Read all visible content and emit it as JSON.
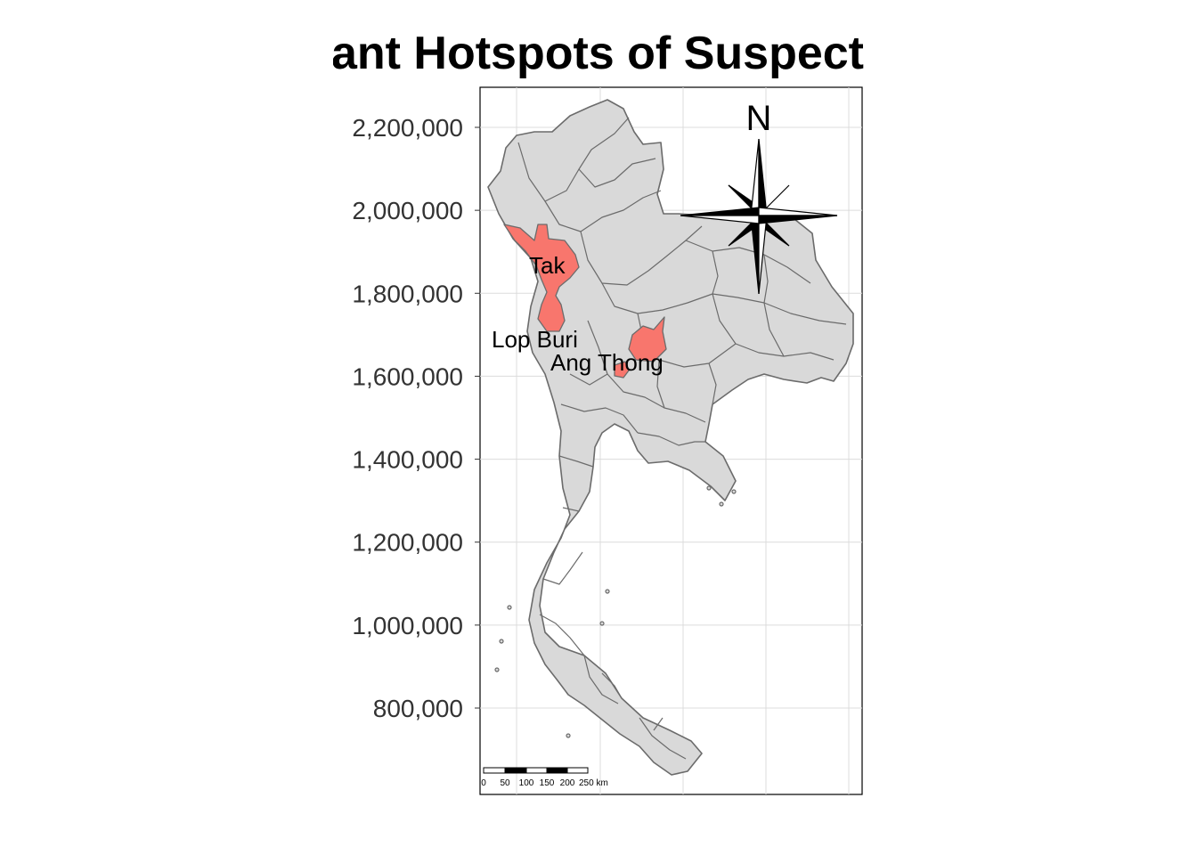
{
  "title": "Significant Hotspots of Suspect",
  "map": {
    "background": "#ffffff",
    "province_fill": "#d9d9d9",
    "province_stroke": "#6b6b6b",
    "hotspot_fill": "#f8766d",
    "grid_color": "#dcdcdc",
    "y_axis": {
      "ticks": [
        {
          "value": 2200000,
          "label": "2,200,000"
        },
        {
          "value": 2000000,
          "label": "2,000,000"
        },
        {
          "value": 1800000,
          "label": "1,800,000"
        },
        {
          "value": 1600000,
          "label": "1,600,000"
        },
        {
          "value": 1400000,
          "label": "1,400,000"
        },
        {
          "value": 1200000,
          "label": "1,200,000"
        },
        {
          "value": 1000000,
          "label": "1,000,000"
        },
        {
          "value": 800000,
          "label": "800,000"
        }
      ]
    },
    "hotspots": [
      {
        "name": "Tak"
      },
      {
        "name": "Lop Buri"
      },
      {
        "name": "Ang Thong"
      }
    ],
    "north_arrow_label": "N",
    "scale_bar": {
      "labels": [
        "0",
        "50",
        "100",
        "150",
        "200",
        "250 km"
      ]
    }
  }
}
